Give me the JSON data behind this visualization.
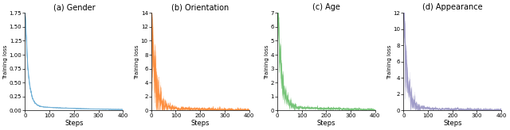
{
  "subplots": [
    {
      "title": "(a) Gender",
      "ylabel": "Training loss",
      "xlabel": "Steps",
      "color": "#6baed6",
      "ylim": [
        0,
        1.75
      ],
      "yticks": [
        0.0,
        0.25,
        0.5,
        0.75,
        1.0,
        1.25,
        1.5,
        1.75
      ],
      "xlim": [
        0,
        400
      ],
      "xticks": [
        0,
        100,
        200,
        300,
        400
      ],
      "peak": 1.75,
      "fast_decay": 0.08,
      "slow_decay": 0.004,
      "floor": 0.08,
      "noise_scale": 0.025,
      "band_scale": 0.03,
      "seed": 42
    },
    {
      "title": "(b) Orientation",
      "ylabel": "Training loss",
      "xlabel": "Steps",
      "color": "#fd8d3c",
      "ylim": [
        0,
        14
      ],
      "yticks": [
        0,
        2,
        4,
        6,
        8,
        10,
        12,
        14
      ],
      "xlim": [
        0,
        400
      ],
      "xticks": [
        0,
        100,
        200,
        300,
        400
      ],
      "peak": 14,
      "fast_decay": 0.07,
      "slow_decay": 0.005,
      "floor": 0.5,
      "noise_scale": 0.25,
      "band_scale": 0.3,
      "seed": 7
    },
    {
      "title": "(c) Age",
      "ylabel": "Training loss",
      "xlabel": "Steps",
      "color": "#74c476",
      "ylim": [
        0,
        7
      ],
      "yticks": [
        0,
        1,
        2,
        3,
        4,
        5,
        6,
        7
      ],
      "xlim": [
        0,
        400
      ],
      "xticks": [
        0,
        100,
        200,
        300,
        400
      ],
      "peak": 7,
      "fast_decay": 0.065,
      "slow_decay": 0.004,
      "floor": 0.3,
      "noise_scale": 0.15,
      "band_scale": 0.18,
      "seed": 13
    },
    {
      "title": "(d) Appearance",
      "ylabel": "Training loss",
      "xlabel": "Steps",
      "color": "#9e9ac8",
      "ylim": [
        0,
        12
      ],
      "yticks": [
        0,
        2,
        4,
        6,
        8,
        10,
        12
      ],
      "xlim": [
        0,
        400
      ],
      "xticks": [
        0,
        100,
        200,
        300,
        400
      ],
      "peak": 12,
      "fast_decay": 0.075,
      "slow_decay": 0.005,
      "floor": 0.4,
      "noise_scale": 0.2,
      "band_scale": 0.25,
      "seed": 99
    }
  ],
  "fig_width": 6.4,
  "fig_height": 1.64,
  "dpi": 100
}
